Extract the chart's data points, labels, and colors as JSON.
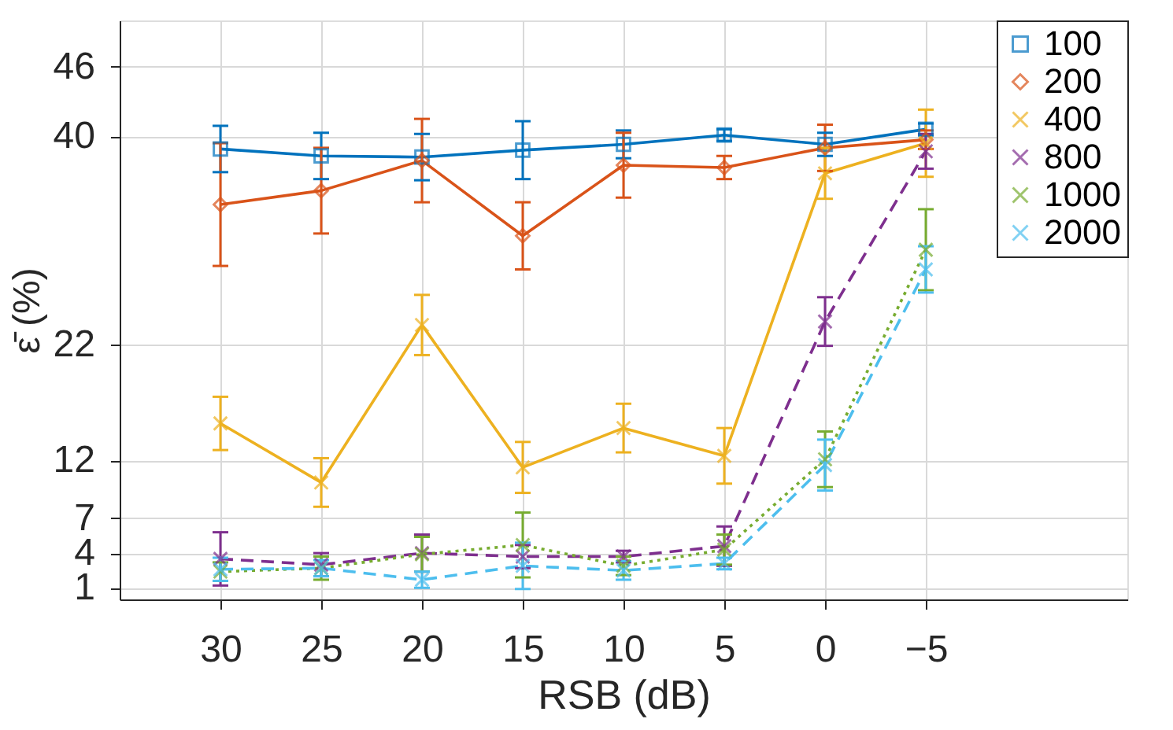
{
  "chart_data": {
    "type": "line",
    "xlabel": "RSB (dB)",
    "ylabel": "ε̄ (%)",
    "x": [
      30,
      25,
      20,
      15,
      10,
      5,
      0,
      -5
    ],
    "xlim": [
      35,
      -15
    ],
    "xticks": [
      30,
      25,
      20,
      15,
      10,
      5,
      0,
      -5
    ],
    "ylim": [
      0,
      50
    ],
    "yticks": [
      1,
      4,
      7,
      12,
      22,
      40,
      46
    ],
    "grid": true,
    "legend": "top right",
    "series": [
      {
        "name": "100",
        "color": "#0072bd",
        "marker": "square",
        "line_style": "solid",
        "values": [
          38.9,
          38.3,
          38.2,
          38.8,
          39.3,
          40.1,
          39.3,
          40.6
        ],
        "errors": [
          2,
          2,
          2,
          2.5,
          1.2,
          0.5,
          1,
          0.5
        ]
      },
      {
        "name": "200",
        "color": "#d95319",
        "marker": "diamond",
        "line_style": "solid",
        "values": [
          34.1,
          35.3,
          37.9,
          31.4,
          37.5,
          37.3,
          39.0,
          39.7
        ],
        "errors": [
          5.3,
          3.7,
          3.6,
          2.9,
          2.8,
          1,
          2,
          0.8
        ]
      },
      {
        "name": "400",
        "color": "#edb120",
        "marker": "cross",
        "line_style": "solid",
        "values": [
          15.2,
          10.1,
          23.7,
          11.4,
          14.8,
          12.4,
          36.8,
          39.4
        ],
        "errors": [
          2.3,
          2.1,
          2.6,
          2.2,
          2.1,
          2.4,
          2.2,
          2.9
        ]
      },
      {
        "name": "800",
        "color": "#7e2f8e",
        "marker": "cross",
        "line_style": "dashed",
        "values": [
          3.5,
          3.0,
          4.0,
          3.7,
          3.7,
          4.6,
          24.0,
          38.7
        ],
        "errors": [
          2.3,
          1,
          1.6,
          1,
          0.5,
          1.7,
          2.1,
          1.5
        ]
      },
      {
        "name": "1000",
        "color": "#77ac30",
        "marker": "cross",
        "line_style": "dotted",
        "values": [
          2.4,
          2.7,
          3.9,
          4.7,
          2.9,
          4.3,
          12.1,
          30.2
        ],
        "errors": [
          0.8,
          1,
          1.5,
          2.8,
          0.8,
          1.3,
          2.4,
          3.5
        ]
      },
      {
        "name": "2000",
        "color": "#4dbeee",
        "marker": "cross",
        "line_style": "dashed",
        "values": [
          2.6,
          2.7,
          1.7,
          2.9,
          2.5,
          3.1,
          11.6,
          28.5
        ],
        "errors": [
          1,
          0.7,
          0.7,
          2,
          0.8,
          0.5,
          2.2,
          2
        ]
      }
    ]
  }
}
